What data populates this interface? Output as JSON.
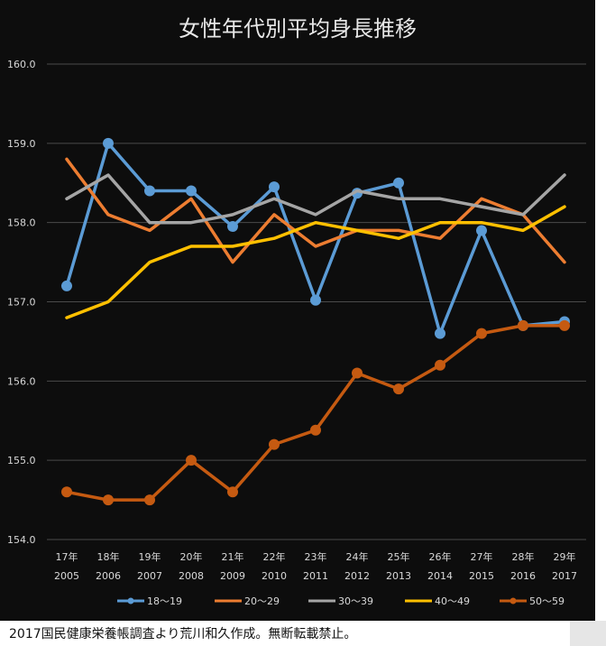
{
  "chart_data": {
    "type": "line",
    "title": "女性年代別平均身長推移",
    "xlabel": "",
    "ylabel": "",
    "ylim": [
      154.0,
      160.0
    ],
    "yticks": [
      "154.0",
      "155.0",
      "156.0",
      "157.0",
      "158.0",
      "159.0",
      "160.0"
    ],
    "categories": [
      {
        "top": "17年",
        "bottom": "2005"
      },
      {
        "top": "18年",
        "bottom": "2006"
      },
      {
        "top": "19年",
        "bottom": "2007"
      },
      {
        "top": "20年",
        "bottom": "2008"
      },
      {
        "top": "21年",
        "bottom": "2009"
      },
      {
        "top": "22年",
        "bottom": "2010"
      },
      {
        "top": "23年",
        "bottom": "2011"
      },
      {
        "top": "24年",
        "bottom": "2012"
      },
      {
        "top": "25年",
        "bottom": "2013"
      },
      {
        "top": "26年",
        "bottom": "2014"
      },
      {
        "top": "27年",
        "bottom": "2015"
      },
      {
        "top": "28年",
        "bottom": "2016"
      },
      {
        "top": "29年",
        "bottom": "2017"
      }
    ],
    "grid": true,
    "legend_position": "bottom",
    "series": [
      {
        "name": "18〜19",
        "color": "#5b9bd5",
        "markers": true,
        "values": [
          157.2,
          159.0,
          158.4,
          158.4,
          157.95,
          158.45,
          157.02,
          158.37,
          158.5,
          156.6,
          157.9,
          156.7,
          156.75
        ]
      },
      {
        "name": "20〜29",
        "color": "#ed7d31",
        "markers": false,
        "values": [
          158.8,
          158.1,
          157.9,
          158.3,
          157.5,
          158.1,
          157.7,
          157.9,
          157.9,
          157.8,
          158.3,
          158.1,
          157.5
        ]
      },
      {
        "name": "30〜39",
        "color": "#a5a5a5",
        "markers": false,
        "values": [
          158.3,
          158.6,
          158.0,
          158.0,
          158.1,
          158.3,
          158.1,
          158.4,
          158.3,
          158.3,
          158.2,
          158.1,
          158.6
        ]
      },
      {
        "name": "40〜49",
        "color": "#ffc000",
        "markers": false,
        "values": [
          156.8,
          157.0,
          157.5,
          157.7,
          157.7,
          157.8,
          158.0,
          157.9,
          157.8,
          158.0,
          158.0,
          157.9,
          158.2
        ]
      },
      {
        "name": "50〜59",
        "color": "#c55a11",
        "markers": true,
        "values": [
          154.6,
          154.5,
          154.5,
          155.0,
          154.6,
          155.2,
          155.38,
          156.1,
          155.9,
          156.2,
          156.6,
          156.7,
          156.7
        ]
      }
    ]
  },
  "footer": {
    "note": "2017国民健康栄養帳調査より荒川和久作成。無断転載禁止。"
  }
}
